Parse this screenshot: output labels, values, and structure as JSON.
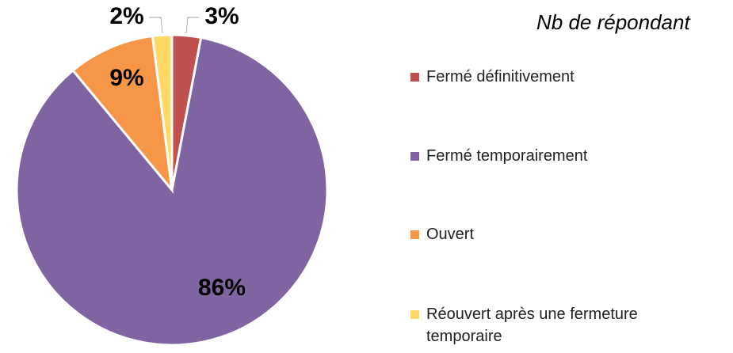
{
  "chart_data": {
    "type": "pie",
    "title": "Nb de répondant",
    "categories": [
      "Fermé définitivement",
      "Fermé temporairement",
      "Ouvert",
      "Réouvert après une fermeture temporaire"
    ],
    "values": [
      3,
      86,
      9,
      2
    ],
    "value_labels": [
      "3%",
      "86%",
      "9%",
      "2%"
    ],
    "colors": [
      "#c0504d",
      "#8064a2",
      "#f79646",
      "#ffd966"
    ],
    "legend": "right"
  }
}
